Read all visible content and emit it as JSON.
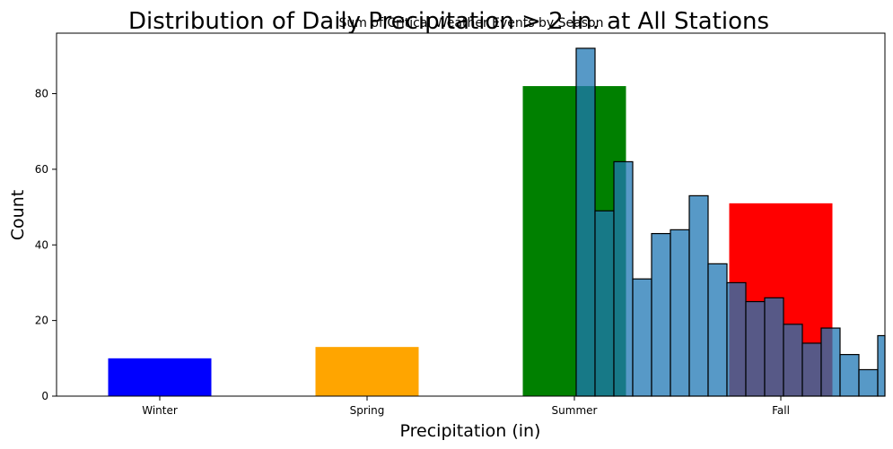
{
  "chart_data": [
    {
      "type": "bar",
      "title": "Sum of Critical Weather Events by Season",
      "categories": [
        "Winter",
        "Spring",
        "Summer",
        "Fall"
      ],
      "values": [
        10,
        13,
        82,
        51
      ],
      "colors": [
        "#0000ff",
        "#ffa500",
        "#008000",
        "#ff0000"
      ],
      "xlabel": "Precipitation (in)",
      "ylabel": "Count",
      "ylim": [
        0,
        96
      ],
      "yticks": [
        0,
        20,
        40,
        60,
        80
      ],
      "grid": false,
      "legend": "none"
    },
    {
      "type": "histogram",
      "title": "Distribution of Daily Precipitation > 2 in. at All Stations",
      "bin_color": "#1f77b4",
      "bin_opacity": 0.75,
      "edge_color": "#000000",
      "values": [
        92,
        49,
        62,
        31,
        43,
        44,
        53,
        35,
        30,
        25,
        26,
        19,
        14,
        18,
        11,
        7,
        16
      ]
    }
  ]
}
